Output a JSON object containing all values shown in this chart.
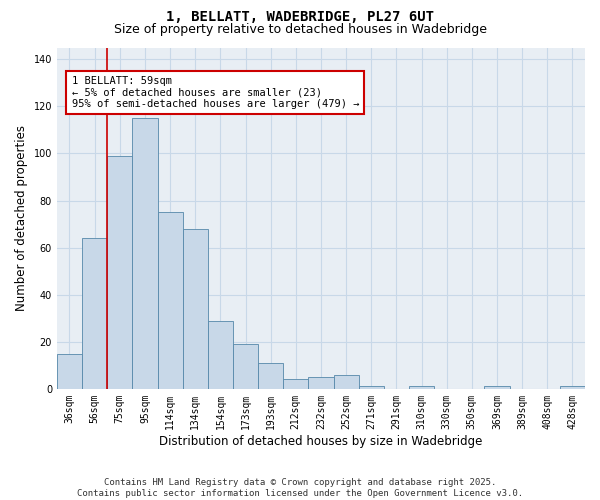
{
  "title1": "1, BELLATT, WADEBRIDGE, PL27 6UT",
  "title2": "Size of property relative to detached houses in Wadebridge",
  "xlabel": "Distribution of detached houses by size in Wadebridge",
  "ylabel": "Number of detached properties",
  "categories": [
    "36sqm",
    "56sqm",
    "75sqm",
    "95sqm",
    "114sqm",
    "134sqm",
    "154sqm",
    "173sqm",
    "193sqm",
    "212sqm",
    "232sqm",
    "252sqm",
    "271sqm",
    "291sqm",
    "310sqm",
    "330sqm",
    "350sqm",
    "369sqm",
    "389sqm",
    "408sqm",
    "428sqm"
  ],
  "values": [
    15,
    64,
    99,
    115,
    75,
    68,
    29,
    19,
    11,
    4,
    5,
    6,
    1,
    0,
    1,
    0,
    0,
    1,
    0,
    0,
    1
  ],
  "bar_color": "#c8d8e8",
  "bar_edge_color": "#5588aa",
  "vline_x": 1.5,
  "vline_color": "#cc0000",
  "annotation_text": "1 BELLATT: 59sqm\n← 5% of detached houses are smaller (23)\n95% of semi-detached houses are larger (479) →",
  "ylim": [
    0,
    145
  ],
  "yticks": [
    0,
    20,
    40,
    60,
    80,
    100,
    120,
    140
  ],
  "grid_color": "#c8d8e8",
  "bg_color": "#e8eef4",
  "footnote": "Contains HM Land Registry data © Crown copyright and database right 2025.\nContains public sector information licensed under the Open Government Licence v3.0.",
  "title1_fontsize": 10,
  "title2_fontsize": 9,
  "xlabel_fontsize": 8.5,
  "ylabel_fontsize": 8.5,
  "tick_fontsize": 7,
  "annot_fontsize": 7.5,
  "footnote_fontsize": 6.5
}
